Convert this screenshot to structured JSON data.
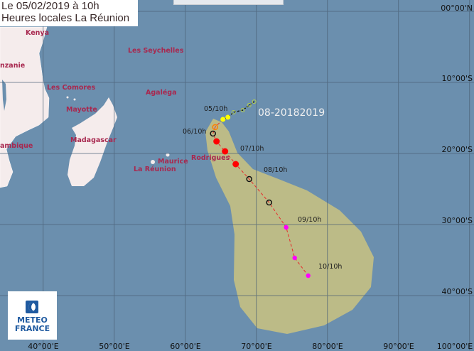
{
  "header": {
    "date_line": "Le 05/02/2019 à 10h",
    "time_line": "Heures locales La Réunion"
  },
  "storm_name": "08-20182019",
  "logo": {
    "line1": "METEO",
    "line2": "FRANCE"
  },
  "places": [
    "Kenya",
    "nzanie",
    "Les Comores",
    "Mayotte",
    "Madagascar",
    "ambique",
    "Les Seychelles",
    "Agaléga",
    "Maurice",
    "La Réunion",
    "Rodrigues"
  ],
  "track_labels": [
    "05/10h",
    "06/10h",
    "07/10h",
    "08/10h",
    "09/10h",
    "10/10h"
  ],
  "lat_labels": [
    "00°00'N",
    "10°00'S",
    "20°00'S",
    "30°00'S",
    "40°00'S"
  ],
  "lon_labels": [
    "40°00'E",
    "50°00'E",
    "60°00'E",
    "70°00'E",
    "80°00'E",
    "90°00'E",
    "100°00'E"
  ],
  "colors": {
    "ocean": "#6b8fae",
    "land": "#f5ecec",
    "cone": "#bcbb87",
    "track": "#e8282a",
    "place_label": "#a8284f"
  },
  "track_points": [
    {
      "lon": 69.7,
      "lat": -12.7,
      "type": "past"
    },
    {
      "lon": 69.0,
      "lat": -13.2,
      "type": "past"
    },
    {
      "lon": 68.1,
      "lat": -13.9,
      "type": "past"
    },
    {
      "lon": 66.8,
      "lat": -14.2,
      "type": "past"
    },
    {
      "lon": 66.0,
      "lat": -14.9,
      "type": "yellow"
    },
    {
      "lon": 65.3,
      "lat": -15.2,
      "type": "yellow"
    },
    {
      "lon": 64.2,
      "lat": -16.3,
      "type": "orange"
    },
    {
      "lon": 63.9,
      "lat": -17.2,
      "type": "cyclone"
    },
    {
      "lon": 64.4,
      "lat": -18.3,
      "type": "red"
    },
    {
      "lon": 65.6,
      "lat": -19.7,
      "type": "red"
    },
    {
      "lon": 67.1,
      "lat": -21.5,
      "type": "red"
    },
    {
      "lon": 69.0,
      "lat": -23.6,
      "type": "cyclone"
    },
    {
      "lon": 71.8,
      "lat": -26.9,
      "type": "cyclone"
    },
    {
      "lon": 74.2,
      "lat": -30.4,
      "type": "magenta"
    },
    {
      "lon": 75.4,
      "lat": -34.7,
      "type": "magenta"
    },
    {
      "lon": 77.3,
      "lat": -37.2,
      "type": "magenta"
    }
  ]
}
